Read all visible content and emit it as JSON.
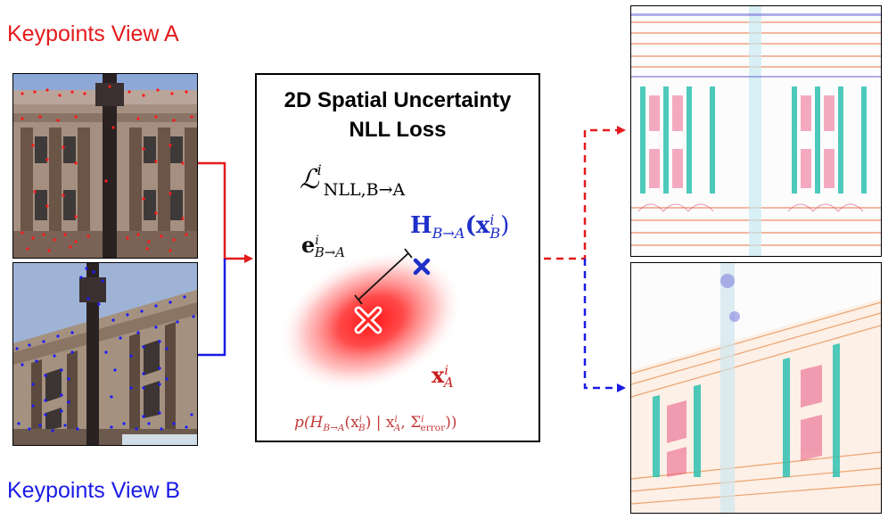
{
  "labels": {
    "keypoints_a": "Keypoints View A",
    "keypoints_b": "Keypoints View B"
  },
  "center_box": {
    "title_line1": "2D Spatial Uncertainty",
    "title_line2": "NLL Loss",
    "loss_symbol": "ℒ",
    "loss_sub": "NLL,B→A",
    "loss_sup": "i",
    "H_text": "H",
    "H_sub": "B→A",
    "H_arg": "(x",
    "H_arg_sub": "B",
    "H_arg_sup": "i",
    "H_close": ")",
    "e_text": "e",
    "e_sub": "B→A",
    "e_sup": "i",
    "x_text": "x",
    "x_sub": "A",
    "x_sup": "i",
    "p_text": "p(H",
    "p_sub1": "B→A",
    "p_mid": "(x",
    "p_sub2": "B",
    "p_sup2": "i",
    "p_given": ") | x",
    "p_sub3": "A",
    "p_sup3": "i",
    "p_sigma": ", Σ",
    "p_sub4": "error",
    "p_sup4": "i",
    "p_close": "))"
  },
  "colors": {
    "view_a": "#e41a1c",
    "view_b": "#1a1ae6",
    "gaussian": "#ff2020",
    "projected_marker": "#1f2fc8"
  },
  "icons": {
    "projected_point": "x-mark-icon",
    "keypoint": "cross-circle-icon"
  }
}
